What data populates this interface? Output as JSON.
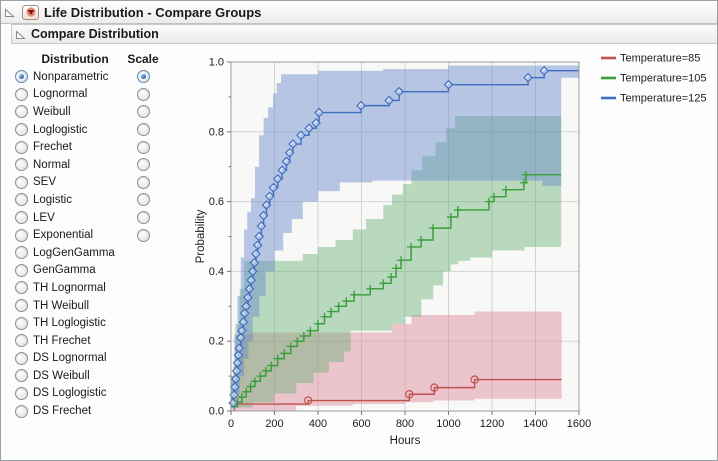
{
  "window": {
    "title": "Life Distribution - Compare Groups",
    "subtitle": "Compare Distribution"
  },
  "panel": {
    "distribution_header": "Distribution",
    "scale_header": "Scale",
    "distributions": [
      "Nonparametric",
      "Lognormal",
      "Weibull",
      "Loglogistic",
      "Frechet",
      "Normal",
      "SEV",
      "Logistic",
      "LEV",
      "Exponential",
      "LogGenGamma",
      "GenGamma",
      "TH Lognormal",
      "TH Weibull",
      "TH Loglogistic",
      "TH Frechet",
      "DS Lognormal",
      "DS Weibull",
      "DS Loglogistic",
      "DS Frechet"
    ],
    "selected_index": 0,
    "scale_radio_count": 10,
    "scale_selected_index": 0
  },
  "chart_data": {
    "type": "step-line",
    "xlabel": "Hours",
    "ylabel": "Probability",
    "xlim": [
      0,
      1600
    ],
    "ylim": [
      0,
      1.0
    ],
    "xticks": [
      0,
      200,
      400,
      600,
      800,
      1000,
      1200,
      1400,
      1600
    ],
    "xtick_labels": [
      "0",
      "200",
      "400",
      "600",
      "800",
      "1000",
      "1200",
      "1400",
      "1600"
    ],
    "yticks": [
      0,
      0.2,
      0.4,
      0.6,
      0.8,
      1.0
    ],
    "ytick_labels": [
      "0.0",
      "0.2",
      "0.4",
      "0.6",
      "0.8",
      "1.0"
    ],
    "y_minor_step": 0.1,
    "grid": true,
    "legend_position": "outside-top-right",
    "series": [
      {
        "name": "Temperature=85",
        "color": "#c0524e",
        "marker": "circle",
        "marker_start_index": 1,
        "end_x": 1520,
        "points": [
          [
            0,
            0.02
          ],
          [
            355,
            0.03
          ],
          [
            820,
            0.048
          ],
          [
            935,
            0.067
          ],
          [
            1120,
            0.09
          ]
        ],
        "band": {
          "fill": "#dd8899",
          "opacity": 0.45,
          "upper": [
            [
              0,
              0.05
            ],
            [
              10,
              0.13
            ],
            [
              25,
              0.19
            ],
            [
              40,
              0.22
            ],
            [
              90,
              0.225
            ],
            [
              560,
              0.225
            ],
            [
              740,
              0.25
            ],
            [
              830,
              0.275
            ],
            [
              1120,
              0.285
            ],
            [
              1520,
              0.285
            ]
          ],
          "lower": [
            [
              0,
              0.0
            ],
            [
              300,
              0.0
            ],
            [
              560,
              0.015
            ],
            [
              800,
              0.02
            ],
            [
              930,
              0.025
            ],
            [
              1120,
              0.03
            ],
            [
              1520,
              0.035
            ]
          ]
        }
      },
      {
        "name": "Temperature=105",
        "color": "#3a9d3a",
        "marker": "plus",
        "marker_start_index": 0,
        "end_x": 1518,
        "points": [
          [
            15,
            0.012
          ],
          [
            30,
            0.025
          ],
          [
            50,
            0.04
          ],
          [
            70,
            0.055
          ],
          [
            90,
            0.07
          ],
          [
            110,
            0.085
          ],
          [
            135,
            0.1
          ],
          [
            160,
            0.115
          ],
          [
            185,
            0.13
          ],
          [
            215,
            0.15
          ],
          [
            245,
            0.165
          ],
          [
            275,
            0.185
          ],
          [
            305,
            0.2
          ],
          [
            335,
            0.215
          ],
          [
            365,
            0.23
          ],
          [
            400,
            0.25
          ],
          [
            430,
            0.27
          ],
          [
            460,
            0.285
          ],
          [
            495,
            0.3
          ],
          [
            530,
            0.315
          ],
          [
            566,
            0.333
          ],
          [
            640,
            0.35
          ],
          [
            700,
            0.366
          ],
          [
            736,
            0.384
          ],
          [
            759,
            0.409
          ],
          [
            782,
            0.432
          ],
          [
            828,
            0.47
          ],
          [
            874,
            0.49
          ],
          [
            929,
            0.524
          ],
          [
            1011,
            0.556
          ],
          [
            1043,
            0.576
          ],
          [
            1186,
            0.6
          ],
          [
            1209,
            0.614
          ],
          [
            1264,
            0.634
          ],
          [
            1347,
            0.654
          ],
          [
            1356,
            0.677
          ]
        ],
        "band": {
          "fill": "#5faf6f",
          "opacity": 0.42,
          "upper": [
            [
              0,
              0.1
            ],
            [
              20,
              0.25
            ],
            [
              40,
              0.35
            ],
            [
              60,
              0.43
            ],
            [
              285,
              0.43
            ],
            [
              330,
              0.45
            ],
            [
              400,
              0.47
            ],
            [
              480,
              0.49
            ],
            [
              560,
              0.52
            ],
            [
              620,
              0.55
            ],
            [
              700,
              0.59
            ],
            [
              740,
              0.62
            ],
            [
              790,
              0.65
            ],
            [
              830,
              0.69
            ],
            [
              880,
              0.73
            ],
            [
              940,
              0.77
            ],
            [
              990,
              0.81
            ],
            [
              1030,
              0.845
            ],
            [
              1518,
              0.845
            ]
          ],
          "lower": [
            [
              0,
              0.0
            ],
            [
              100,
              0.01
            ],
            [
              200,
              0.025
            ],
            [
              300,
              0.05
            ],
            [
              380,
              0.08
            ],
            [
              450,
              0.11
            ],
            [
              520,
              0.14
            ],
            [
              550,
              0.17
            ],
            [
              740,
              0.23
            ],
            [
              800,
              0.25
            ],
            [
              875,
              0.27
            ],
            [
              930,
              0.32
            ],
            [
              975,
              0.36
            ],
            [
              1010,
              0.4
            ],
            [
              1045,
              0.42
            ],
            [
              1100,
              0.43
            ],
            [
              1200,
              0.44
            ],
            [
              1350,
              0.46
            ],
            [
              1420,
              0.47
            ],
            [
              1518,
              0.47
            ]
          ]
        }
      },
      {
        "name": "Temperature=125",
        "color": "#3f6fc1",
        "marker": "diamond",
        "marker_start_index": 0,
        "end_x": 1600,
        "points": [
          [
            10,
            0.023
          ],
          [
            14,
            0.046
          ],
          [
            18,
            0.069
          ],
          [
            22,
            0.092
          ],
          [
            26,
            0.115
          ],
          [
            30,
            0.138
          ],
          [
            34,
            0.16
          ],
          [
            38,
            0.18
          ],
          [
            45,
            0.21
          ],
          [
            50,
            0.23
          ],
          [
            57,
            0.255
          ],
          [
            63,
            0.28
          ],
          [
            70,
            0.3
          ],
          [
            78,
            0.325
          ],
          [
            85,
            0.35
          ],
          [
            93,
            0.375
          ],
          [
            100,
            0.4
          ],
          [
            108,
            0.425
          ],
          [
            115,
            0.45
          ],
          [
            123,
            0.475
          ],
          [
            130,
            0.5
          ],
          [
            140,
            0.53
          ],
          [
            150,
            0.56
          ],
          [
            163,
            0.59
          ],
          [
            178,
            0.615
          ],
          [
            195,
            0.64
          ],
          [
            215,
            0.665
          ],
          [
            235,
            0.69
          ],
          [
            255,
            0.715
          ],
          [
            270,
            0.74
          ],
          [
            285,
            0.765
          ],
          [
            322,
            0.79
          ],
          [
            359,
            0.81
          ],
          [
            391,
            0.825
          ],
          [
            405,
            0.855
          ],
          [
            598,
            0.875
          ],
          [
            727,
            0.89
          ],
          [
            773,
            0.915
          ],
          [
            1000,
            0.935
          ],
          [
            1366,
            0.955
          ],
          [
            1440,
            0.975
          ]
        ],
        "band": {
          "fill": "#6688cc",
          "opacity": 0.45,
          "upper": [
            [
              0,
              0.1
            ],
            [
              15,
              0.22
            ],
            [
              30,
              0.33
            ],
            [
              45,
              0.44
            ],
            [
              60,
              0.52
            ],
            [
              75,
              0.57
            ],
            [
              92,
              0.61
            ],
            [
              110,
              0.7
            ],
            [
              129,
              0.79
            ],
            [
              150,
              0.84
            ],
            [
              170,
              0.87
            ],
            [
              193,
              0.91
            ],
            [
              210,
              0.94
            ],
            [
              230,
              0.965
            ],
            [
              400,
              0.975
            ],
            [
              700,
              0.98
            ],
            [
              1000,
              0.99
            ],
            [
              1600,
              0.99
            ]
          ],
          "lower": [
            [
              0,
              0.0
            ],
            [
              20,
              0.01
            ],
            [
              40,
              0.05
            ],
            [
              60,
              0.1
            ],
            [
              80,
              0.15
            ],
            [
              100,
              0.2
            ],
            [
              130,
              0.27
            ],
            [
              160,
              0.33
            ],
            [
              200,
              0.4
            ],
            [
              240,
              0.46
            ],
            [
              280,
              0.51
            ],
            [
              330,
              0.55
            ],
            [
              400,
              0.6
            ],
            [
              500,
              0.63
            ],
            [
              650,
              0.655
            ],
            [
              830,
              0.66
            ],
            [
              1430,
              0.66
            ],
            [
              1440,
              0.645
            ],
            [
              1518,
              0.645
            ],
            [
              1519,
              0.955
            ],
            [
              1600,
              0.955
            ]
          ]
        }
      }
    ]
  }
}
